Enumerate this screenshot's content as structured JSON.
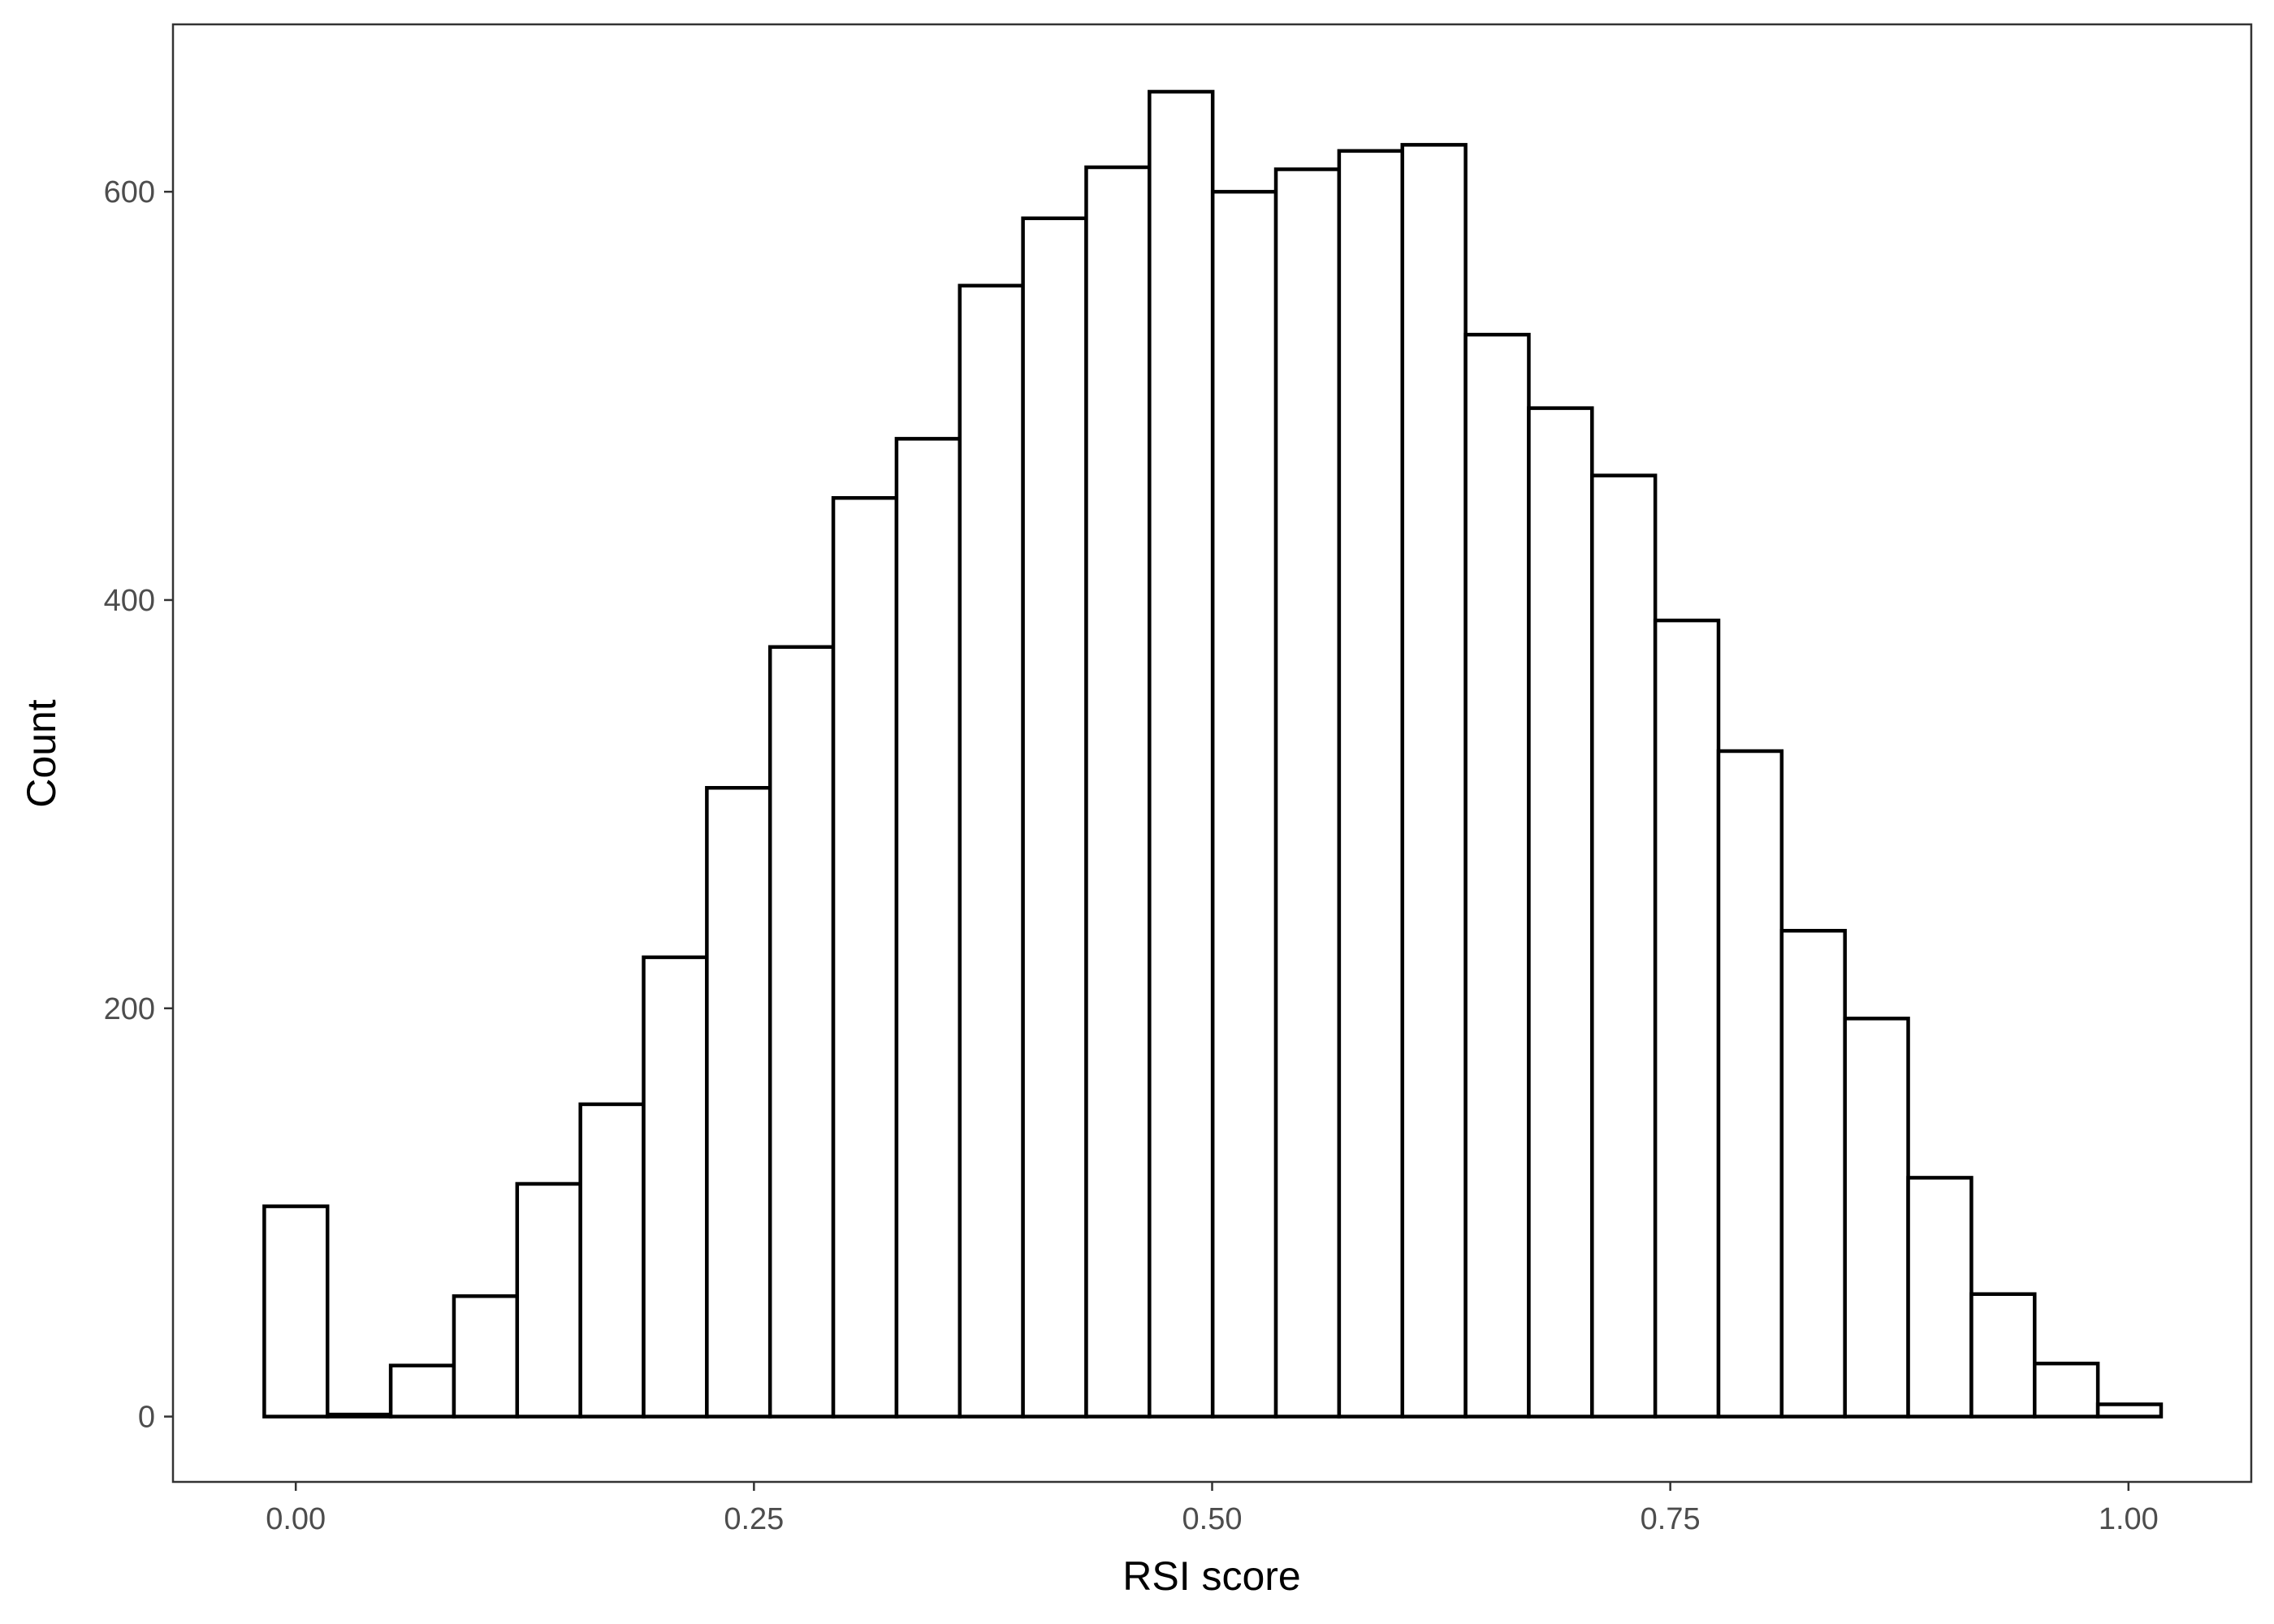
{
  "chart_data": {
    "type": "bar",
    "subtype": "histogram",
    "xlabel": "RSI score",
    "ylabel": "Count",
    "xlim": [
      -0.067,
      1.067
    ],
    "ylim": [
      -32,
      682
    ],
    "xticks": [
      0.0,
      0.25,
      0.5,
      0.75,
      1.0
    ],
    "xtick_labels": [
      "0.00",
      "0.25",
      "0.50",
      "0.75",
      "1.00"
    ],
    "yticks": [
      0,
      200,
      400,
      600
    ],
    "ytick_labels": [
      "0",
      "200",
      "400",
      "600"
    ],
    "grid": false,
    "bin_start": -0.0172,
    "bin_width": 0.0345,
    "values": [
      103,
      1,
      25,
      59,
      114,
      153,
      225,
      308,
      377,
      450,
      479,
      554,
      587,
      612,
      649,
      600,
      611,
      620,
      623,
      530,
      494,
      461,
      390,
      326,
      238,
      195,
      117,
      60,
      26,
      6
    ],
    "bar_fill": "#ffffff",
    "bar_stroke": "#000000"
  }
}
